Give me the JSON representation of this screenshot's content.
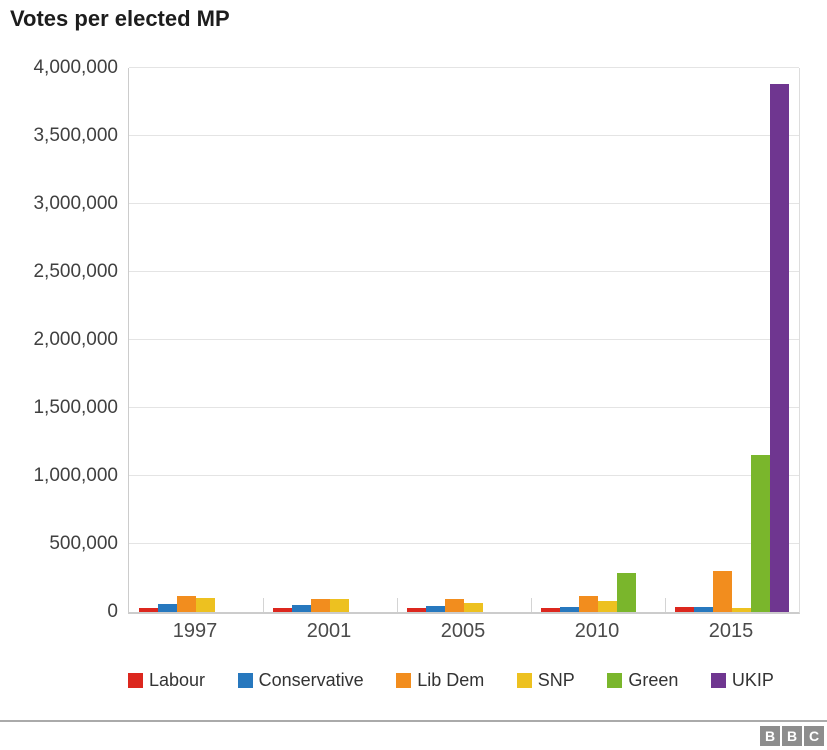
{
  "title": "Votes per elected MP",
  "chart_data": {
    "type": "bar",
    "title": "Votes per elected MP",
    "xlabel": "",
    "ylabel": "",
    "categories": [
      "1997",
      "2001",
      "2005",
      "2010",
      "2015"
    ],
    "series": [
      {
        "name": "Labour",
        "color": "#dc271e",
        "values": [
          32000,
          26000,
          27000,
          33000,
          40000
        ]
      },
      {
        "name": "Conservative",
        "color": "#2778be",
        "values": [
          58000,
          50000,
          44000,
          35000,
          34000
        ]
      },
      {
        "name": "Lib Dem",
        "color": "#f28d1e",
        "values": [
          114000,
          93000,
          97000,
          120000,
          302000
        ]
      },
      {
        "name": "SNP",
        "color": "#edc120",
        "values": [
          104000,
          93000,
          69000,
          82000,
          26000
        ]
      },
      {
        "name": "Green",
        "color": "#7ab62c",
        "values": [
          null,
          null,
          null,
          286000,
          1158000
        ]
      },
      {
        "name": "UKIP",
        "color": "#6f3690",
        "values": [
          null,
          null,
          null,
          null,
          3881000
        ]
      }
    ],
    "ylim": [
      0,
      4000000
    ],
    "ytick_interval": 500000,
    "ytick_labels": [
      "0",
      "500,000",
      "1,000,000",
      "1,500,000",
      "2,000,000",
      "2,500,000",
      "3,000,000",
      "3,500,000",
      "4,000,000"
    ],
    "grid": true,
    "legend_position": "bottom"
  },
  "footer": {
    "logo_letters": [
      "B",
      "B",
      "C"
    ]
  }
}
